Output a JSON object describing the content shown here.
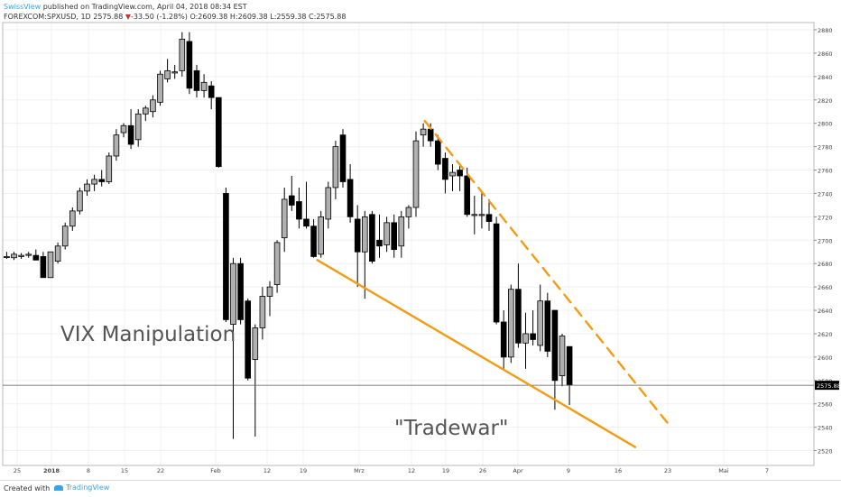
{
  "header": {
    "author": "SwissView",
    "published_text": "published on TradingView.com, April 04, 2018 08:34 EST",
    "symbol_line": "FOREXCOM:SPXUSD, 1D 2575.88",
    "change": "-33.50 (-1.28%)",
    "ohlc": "O:2609.38 H:2609.38 L:2559.38 C:2575.88"
  },
  "footer": {
    "created_with": "Created with",
    "tradingview": "TradingView"
  },
  "annotations": {
    "vix": "VIX Manipulation",
    "tradewar": "\"Tradewar\""
  },
  "colors": {
    "up_fill": "#b0b0b0",
    "down_fill": "#000000",
    "trendline": "#f39c12",
    "price_label_bg": "#000000"
  },
  "chart_data": {
    "type": "candlestick",
    "y_ticks": [
      2520,
      2540,
      2560,
      2580,
      2600,
      2620,
      2640,
      2660,
      2680,
      2700,
      2720,
      2740,
      2760,
      2780,
      2800,
      2820,
      2840,
      2860,
      2880
    ],
    "ylim": [
      2505,
      2890
    ],
    "x_tick_labels": [
      "25",
      "2018",
      "8",
      "15",
      "22",
      "Feb",
      "12",
      "19",
      "Mrz",
      "12",
      "19",
      "26",
      "Apr",
      "9",
      "16",
      "23",
      "Mai",
      "7"
    ],
    "last_price": "2575.88",
    "grid": true,
    "candles": [
      {
        "o": 2686,
        "h": 2690,
        "l": 2684,
        "c": 2686
      },
      {
        "o": 2685,
        "h": 2690,
        "l": 2683,
        "c": 2688
      },
      {
        "o": 2686,
        "h": 2689,
        "l": 2684,
        "c": 2687
      },
      {
        "o": 2687,
        "h": 2690,
        "l": 2685,
        "c": 2688
      },
      {
        "o": 2687,
        "h": 2692,
        "l": 2683,
        "c": 2683
      },
      {
        "o": 2686,
        "h": 2690,
        "l": 2668,
        "c": 2668
      },
      {
        "o": 2668,
        "h": 2690,
        "l": 2668,
        "c": 2690
      },
      {
        "o": 2682,
        "h": 2698,
        "l": 2680,
        "c": 2695
      },
      {
        "o": 2695,
        "h": 2715,
        "l": 2692,
        "c": 2712
      },
      {
        "o": 2712,
        "h": 2728,
        "l": 2708,
        "c": 2725
      },
      {
        "o": 2725,
        "h": 2745,
        "l": 2722,
        "c": 2742
      },
      {
        "o": 2742,
        "h": 2752,
        "l": 2738,
        "c": 2748
      },
      {
        "o": 2748,
        "h": 2756,
        "l": 2742,
        "c": 2752
      },
      {
        "o": 2752,
        "h": 2760,
        "l": 2746,
        "c": 2750
      },
      {
        "o": 2750,
        "h": 2775,
        "l": 2748,
        "c": 2772
      },
      {
        "o": 2772,
        "h": 2795,
        "l": 2768,
        "c": 2790
      },
      {
        "o": 2792,
        "h": 2800,
        "l": 2788,
        "c": 2798
      },
      {
        "o": 2798,
        "h": 2812,
        "l": 2778,
        "c": 2782
      },
      {
        "o": 2786,
        "h": 2812,
        "l": 2780,
        "c": 2808
      },
      {
        "o": 2808,
        "h": 2815,
        "l": 2802,
        "c": 2813
      },
      {
        "o": 2810,
        "h": 2824,
        "l": 2805,
        "c": 2820
      },
      {
        "o": 2818,
        "h": 2845,
        "l": 2815,
        "c": 2842
      },
      {
        "o": 2838,
        "h": 2855,
        "l": 2835,
        "c": 2845
      },
      {
        "o": 2843,
        "h": 2850,
        "l": 2838,
        "c": 2844
      },
      {
        "o": 2845,
        "h": 2878,
        "l": 2840,
        "c": 2872
      },
      {
        "o": 2870,
        "h": 2878,
        "l": 2825,
        "c": 2830
      },
      {
        "o": 2845,
        "h": 2850,
        "l": 2822,
        "c": 2828
      },
      {
        "o": 2828,
        "h": 2842,
        "l": 2822,
        "c": 2835
      },
      {
        "o": 2832,
        "h": 2836,
        "l": 2812,
        "c": 2822
      },
      {
        "o": 2822,
        "h": 2822,
        "l": 2762,
        "c": 2763
      },
      {
        "o": 2740,
        "h": 2745,
        "l": 2630,
        "c": 2632
      },
      {
        "o": 2628,
        "h": 2685,
        "l": 2530,
        "c": 2680
      },
      {
        "o": 2680,
        "h": 2685,
        "l": 2628,
        "c": 2632
      },
      {
        "o": 2648,
        "h": 2650,
        "l": 2580,
        "c": 2582
      },
      {
        "o": 2598,
        "h": 2628,
        "l": 2532,
        "c": 2625
      },
      {
        "o": 2625,
        "h": 2660,
        "l": 2615,
        "c": 2652
      },
      {
        "o": 2652,
        "h": 2665,
        "l": 2635,
        "c": 2660
      },
      {
        "o": 2662,
        "h": 2700,
        "l": 2655,
        "c": 2698
      },
      {
        "o": 2702,
        "h": 2745,
        "l": 2690,
        "c": 2735
      },
      {
        "o": 2738,
        "h": 2755,
        "l": 2725,
        "c": 2730
      },
      {
        "o": 2733,
        "h": 2745,
        "l": 2710,
        "c": 2718
      },
      {
        "o": 2718,
        "h": 2750,
        "l": 2710,
        "c": 2712
      },
      {
        "o": 2712,
        "h": 2718,
        "l": 2685,
        "c": 2686
      },
      {
        "o": 2688,
        "h": 2725,
        "l": 2685,
        "c": 2720
      },
      {
        "o": 2718,
        "h": 2750,
        "l": 2710,
        "c": 2745
      },
      {
        "o": 2745,
        "h": 2785,
        "l": 2735,
        "c": 2780
      },
      {
        "o": 2790,
        "h": 2795,
        "l": 2745,
        "c": 2750
      },
      {
        "o": 2752,
        "h": 2765,
        "l": 2715,
        "c": 2720
      },
      {
        "o": 2718,
        "h": 2730,
        "l": 2660,
        "c": 2690
      },
      {
        "o": 2690,
        "h": 2725,
        "l": 2650,
        "c": 2720
      },
      {
        "o": 2722,
        "h": 2725,
        "l": 2680,
        "c": 2682
      },
      {
        "o": 2700,
        "h": 2722,
        "l": 2685,
        "c": 2695
      },
      {
        "o": 2696,
        "h": 2720,
        "l": 2690,
        "c": 2715
      },
      {
        "o": 2715,
        "h": 2722,
        "l": 2685,
        "c": 2692
      },
      {
        "o": 2695,
        "h": 2725,
        "l": 2685,
        "c": 2720
      },
      {
        "o": 2720,
        "h": 2730,
        "l": 2710,
        "c": 2728
      },
      {
        "o": 2728,
        "h": 2793,
        "l": 2720,
        "c": 2785
      },
      {
        "o": 2790,
        "h": 2800,
        "l": 2780,
        "c": 2795
      },
      {
        "o": 2795,
        "h": 2800,
        "l": 2780,
        "c": 2785
      },
      {
        "o": 2785,
        "h": 2790,
        "l": 2760,
        "c": 2765
      },
      {
        "o": 2770,
        "h": 2775,
        "l": 2740,
        "c": 2752
      },
      {
        "o": 2755,
        "h": 2765,
        "l": 2742,
        "c": 2758
      },
      {
        "o": 2760,
        "h": 2765,
        "l": 2742,
        "c": 2755
      },
      {
        "o": 2755,
        "h": 2762,
        "l": 2720,
        "c": 2722
      },
      {
        "o": 2722,
        "h": 2738,
        "l": 2705,
        "c": 2722
      },
      {
        "o": 2722,
        "h": 2740,
        "l": 2710,
        "c": 2722
      },
      {
        "o": 2722,
        "h": 2735,
        "l": 2708,
        "c": 2716
      },
      {
        "o": 2714,
        "h": 2720,
        "l": 2628,
        "c": 2630
      },
      {
        "o": 2630,
        "h": 2640,
        "l": 2590,
        "c": 2600
      },
      {
        "o": 2600,
        "h": 2662,
        "l": 2595,
        "c": 2658
      },
      {
        "o": 2658,
        "h": 2680,
        "l": 2608,
        "c": 2612
      },
      {
        "o": 2612,
        "h": 2638,
        "l": 2590,
        "c": 2620
      },
      {
        "o": 2620,
        "h": 2640,
        "l": 2610,
        "c": 2615
      },
      {
        "o": 2610,
        "h": 2662,
        "l": 2605,
        "c": 2648
      },
      {
        "o": 2648,
        "h": 2655,
        "l": 2600,
        "c": 2605
      },
      {
        "o": 2640,
        "h": 2640,
        "l": 2555,
        "c": 2580
      },
      {
        "o": 2584,
        "h": 2620,
        "l": 2575,
        "c": 2618
      },
      {
        "o": 2609,
        "h": 2609,
        "l": 2559,
        "c": 2576
      }
    ],
    "trendlines": [
      {
        "style": "solid",
        "x1": 42.5,
        "y1": 2683,
        "x2": 86,
        "y2": 2523
      },
      {
        "style": "dashed",
        "x1": 57.2,
        "y1": 2802,
        "x2": 90.5,
        "y2": 2543
      }
    ]
  }
}
